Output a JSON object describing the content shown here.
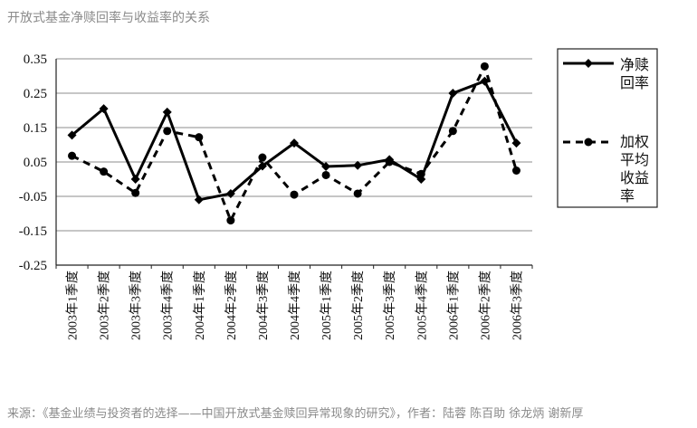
{
  "page": {
    "title": "开放式基金净赎回率与收益率的关系",
    "source": "来源：《基金业绩与投资者的选择——中国开放式基金赎回异常现象的研究》，作者：陆蓉 陈百助 徐龙炳 谢新厚"
  },
  "chart_data": {
    "type": "line",
    "title": "",
    "xlabel": "",
    "ylabel": "",
    "categories": [
      "2003年1季度",
      "2003年2季度",
      "2003年3季度",
      "2003年4季度",
      "2004年1季度",
      "2004年2季度",
      "2004年3季度",
      "2004年4季度",
      "2005年1季度",
      "2005年2季度",
      "2005年3季度",
      "2005年4季度",
      "2006年1季度",
      "2006年2季度",
      "2006年3季度"
    ],
    "yticks": [
      "0.35",
      "0.25",
      "0.15",
      "0.05",
      "-0.05",
      "-0.15",
      "-0.25"
    ],
    "ylim": [
      -0.25,
      0.35
    ],
    "grid": true,
    "legend_position": "right",
    "series": [
      {
        "name": "净赎回率",
        "style": "solid",
        "marker": "diamond",
        "color": "#000000",
        "values": [
          0.128,
          0.205,
          0.0,
          0.195,
          -0.06,
          -0.042,
          0.038,
          0.105,
          0.037,
          0.04,
          0.057,
          0.0,
          0.25,
          0.285,
          0.105
        ]
      },
      {
        "name": "加权平均收益率",
        "style": "dashed",
        "marker": "circle",
        "color": "#000000",
        "values": [
          0.068,
          0.022,
          -0.04,
          0.14,
          0.122,
          -0.12,
          0.063,
          -0.045,
          0.012,
          -0.042,
          0.05,
          0.015,
          0.14,
          0.328,
          0.025
        ]
      }
    ],
    "legend": [
      {
        "lines": [
          "净赎",
          "回率"
        ]
      },
      {
        "lines": [
          "加权",
          "平均",
          "收益",
          "率"
        ]
      }
    ]
  }
}
